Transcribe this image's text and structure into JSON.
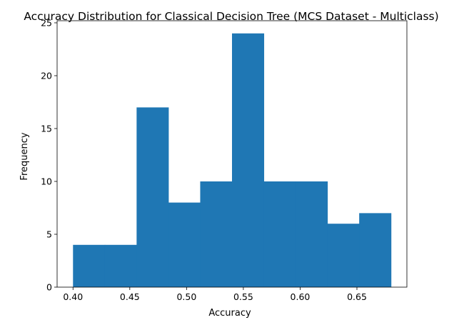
{
  "chart_data": {
    "type": "bar",
    "title": "Accuracy Distribution for Classical Decision Tree (MCS Dataset - Multiclass)",
    "xlabel": "Accuracy",
    "ylabel": "Frequency",
    "bins": [
      {
        "start": 0.4,
        "end": 0.428,
        "count": 4
      },
      {
        "start": 0.428,
        "end": 0.456,
        "count": 4
      },
      {
        "start": 0.456,
        "end": 0.484,
        "count": 17
      },
      {
        "start": 0.484,
        "end": 0.512,
        "count": 8
      },
      {
        "start": 0.512,
        "end": 0.54,
        "count": 10
      },
      {
        "start": 0.54,
        "end": 0.568,
        "count": 24
      },
      {
        "start": 0.568,
        "end": 0.596,
        "count": 10
      },
      {
        "start": 0.596,
        "end": 0.624,
        "count": 10
      },
      {
        "start": 0.624,
        "end": 0.652,
        "count": 6
      },
      {
        "start": 0.652,
        "end": 0.68,
        "count": 7
      }
    ],
    "xticks": [
      "0.40",
      "0.45",
      "0.50",
      "0.55",
      "0.60",
      "0.65"
    ],
    "yticks": [
      "0",
      "5",
      "10",
      "15",
      "20",
      "25"
    ],
    "xlim": [
      0.386,
      0.694
    ],
    "ylim": [
      0,
      25.2
    ],
    "bar_color": "#1f77b4",
    "grid": false
  }
}
